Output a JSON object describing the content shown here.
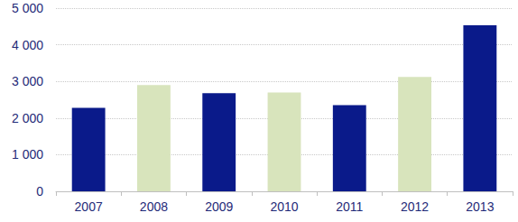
{
  "chart_data": {
    "type": "bar",
    "categories": [
      "2007",
      "2008",
      "2009",
      "2010",
      "2011",
      "2012",
      "2013"
    ],
    "values": [
      2280,
      2900,
      2680,
      2700,
      2350,
      3120,
      4530
    ],
    "colors": [
      "#0a1a8a",
      "#d8e4bc",
      "#0a1a8a",
      "#d8e4bc",
      "#0a1a8a",
      "#d8e4bc",
      "#0a1a8a"
    ],
    "ylim": [
      0,
      5000
    ],
    "yticks": [
      0,
      {
        "value": 1000,
        "label": "1 000"
      },
      {
        "value": 2000,
        "label": "2 000"
      },
      {
        "value": 3000,
        "label": "3 000"
      },
      {
        "value": 4000,
        "label": "4 000"
      },
      {
        "value": 5000,
        "label": "5 000"
      }
    ],
    "grid": true
  }
}
